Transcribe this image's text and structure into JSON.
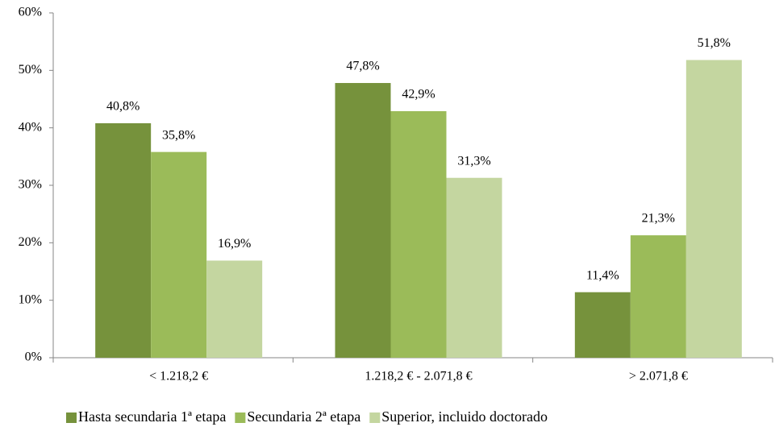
{
  "chart_data": {
    "type": "bar",
    "categories": [
      "< 1.218,2 €",
      "1.218,2 € - 2.071,8 €",
      "> 2.071,8 €"
    ],
    "series": [
      {
        "name": "Hasta secundaria 1ª etapa",
        "color": "#76923c",
        "values": [
          40.8,
          47.8,
          11.4
        ],
        "value_labels": [
          "40,8%",
          "47,8%",
          "11,4%"
        ]
      },
      {
        "name": "Secundaria 2ª etapa",
        "color": "#9bbb59",
        "values": [
          35.8,
          42.9,
          21.3
        ],
        "value_labels": [
          "35,8%",
          "42,9%",
          "21,3%"
        ]
      },
      {
        "name": "Superior, incluido doctorado",
        "color": "#c4d6a0",
        "values": [
          16.9,
          31.3,
          51.8
        ],
        "value_labels": [
          "16,9%",
          "31,3%",
          "51,8%"
        ]
      }
    ],
    "ylim": [
      0,
      60
    ],
    "yticks": [
      {
        "value": 0,
        "label": "0%"
      },
      {
        "value": 10,
        "label": "10%"
      },
      {
        "value": 20,
        "label": "20%"
      },
      {
        "value": 30,
        "label": "30%"
      },
      {
        "value": 40,
        "label": "40%"
      },
      {
        "value": 50,
        "label": "50%"
      },
      {
        "value": 60,
        "label": "60%"
      }
    ],
    "grid": false,
    "legend": "bottom"
  }
}
